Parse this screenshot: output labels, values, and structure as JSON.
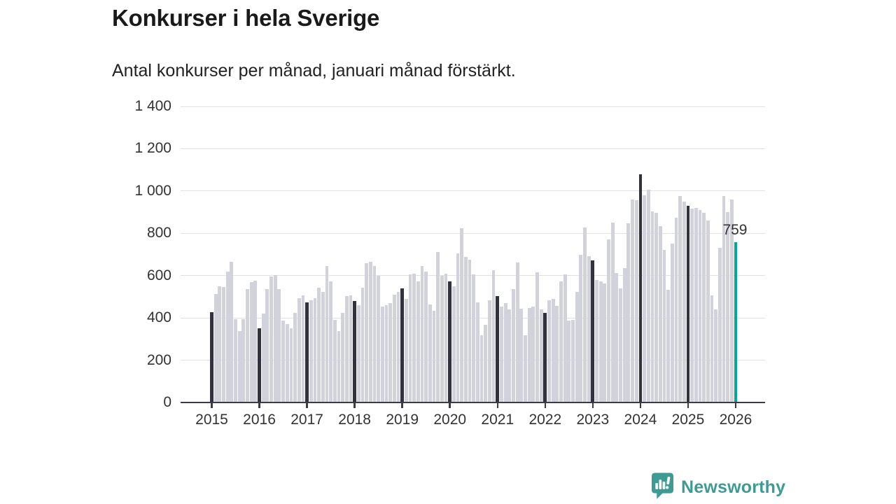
{
  "header": {
    "title": "Konkurser i hela Sverige",
    "subtitle": "Antal konkurser per månad, januari månad förstärkt."
  },
  "branding": {
    "name": "Newsworthy",
    "icon": "newsworthy-speech-bubble-chart-icon"
  },
  "colors": {
    "bar": "#d2d2dc",
    "january": "#32323e",
    "highlight": "#00a79b",
    "axis": "#3b3b45",
    "grid": "#e0e0e5",
    "label": "#333333",
    "title": "#1a1a1a",
    "brand": "#3e9b94"
  },
  "chart_data": {
    "type": "bar",
    "title": "Konkurser i hela Sverige",
    "subtitle": "Antal konkurser per månad, januari månad förstärkt.",
    "xlabel": "",
    "ylabel": "",
    "ylim": [
      0,
      1400
    ],
    "grid": "horizontal",
    "legend_position": "none",
    "yticks": [
      0,
      200,
      400,
      600,
      800,
      1000,
      1200,
      1400
    ],
    "ytick_labels": [
      "0",
      "200",
      "400",
      "600",
      "800",
      "1 000",
      "1 200",
      "1 400"
    ],
    "x_years": [
      2015,
      2016,
      2017,
      2018,
      2019,
      2020,
      2021,
      2022,
      2023,
      2024,
      2025,
      2026
    ],
    "january_emphasized": true,
    "series": [
      {
        "year": 2015,
        "values": [
          428,
          513,
          550,
          545,
          619,
          664,
          394,
          337,
          395,
          535,
          569,
          576
        ]
      },
      {
        "year": 2016,
        "values": [
          352,
          420,
          537,
          597,
          603,
          536,
          386,
          372,
          350,
          422,
          494,
          505
        ]
      },
      {
        "year": 2017,
        "values": [
          474,
          483,
          494,
          544,
          522,
          644,
          574,
          389,
          336,
          422,
          503,
          505
        ]
      },
      {
        "year": 2018,
        "values": [
          481,
          459,
          544,
          658,
          664,
          644,
          598,
          452,
          459,
          470,
          511,
          522
        ]
      },
      {
        "year": 2019,
        "values": [
          541,
          489,
          606,
          608,
          572,
          644,
          619,
          463,
          433,
          711,
          598,
          610
        ]
      },
      {
        "year": 2020,
        "values": [
          572,
          550,
          706,
          824,
          689,
          674,
          606,
          472,
          319,
          367,
          483,
          625
        ]
      },
      {
        "year": 2021,
        "values": [
          502,
          452,
          469,
          441,
          536,
          661,
          444,
          317,
          447,
          452,
          615,
          440
        ]
      },
      {
        "year": 2022,
        "values": [
          422,
          483,
          491,
          456,
          574,
          606,
          386,
          391,
          522,
          697,
          828,
          691
        ]
      },
      {
        "year": 2023,
        "values": [
          672,
          580,
          573,
          562,
          772,
          852,
          613,
          541,
          637,
          848,
          961,
          955
        ]
      },
      {
        "year": 2024,
        "values": [
          1080,
          980,
          1005,
          905,
          898,
          835,
          720,
          533,
          750,
          874,
          978,
          950
        ]
      },
      {
        "year": 2025,
        "values": [
          930,
          917,
          919,
          911,
          897,
          859,
          506,
          441,
          730,
          978,
          900,
          959
        ]
      },
      {
        "year": 2026,
        "values": [
          759
        ]
      }
    ],
    "highlight": {
      "year": 2026,
      "month_index": 0,
      "value": 759,
      "label": "759"
    }
  }
}
